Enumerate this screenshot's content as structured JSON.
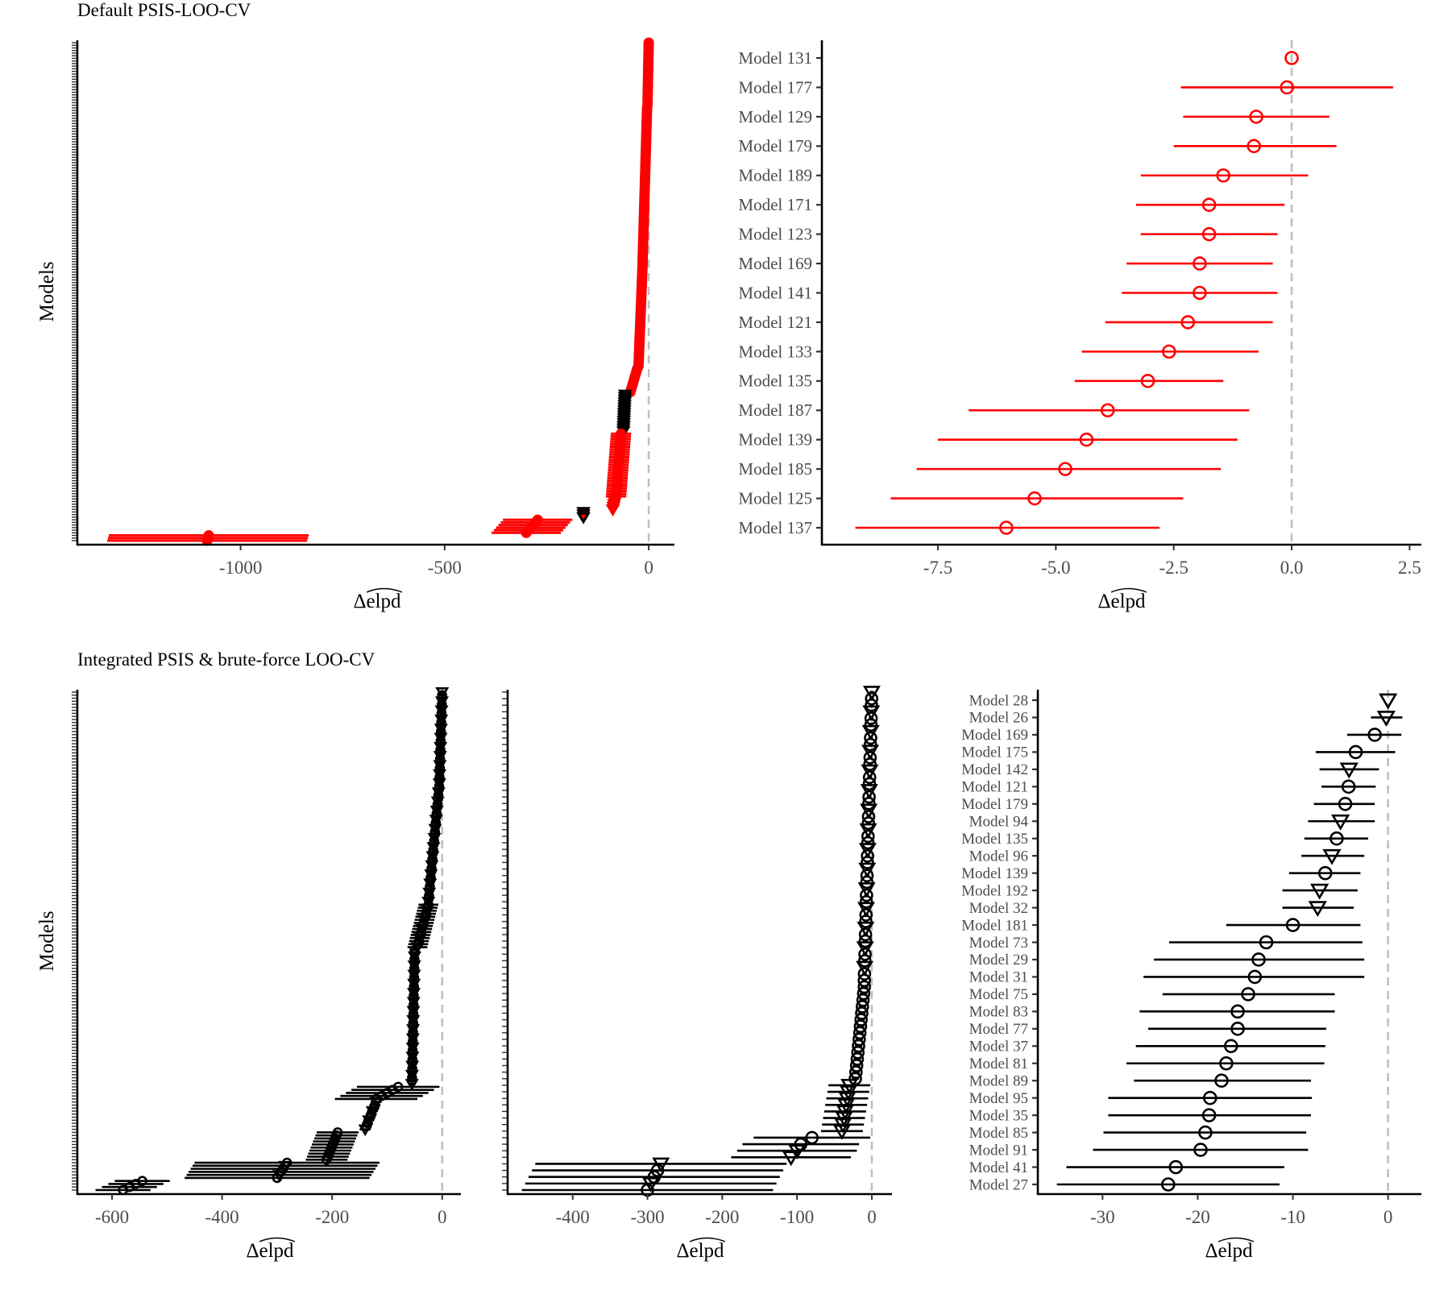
{
  "colors": {
    "psis": "#ff0000",
    "brute": "#000000",
    "zero_line": "#bebebe",
    "axis": "#000000"
  },
  "chart_data": [
    {
      "id": "top-left",
      "type": "scatter",
      "title": "Default PSIS-LOO-CV",
      "xlabel": "Δelpd",
      "ylabel": "Models",
      "xlim": [
        -1400,
        63
      ],
      "xticks": [
        {
          "value": -1000,
          "label": "-1000"
        },
        {
          "value": -500,
          "label": "-500"
        },
        {
          "value": 0,
          "label": "0"
        }
      ],
      "reference_line": 0,
      "segments": [
        {
          "n": 25,
          "est_from": 0,
          "est_to": -3,
          "half_width": 3,
          "shape": "circle",
          "color": "#ff0000",
          "fill": "#ff0000"
        },
        {
          "n": 60,
          "est_from": -4,
          "est_to": -15,
          "half_width": 8,
          "shape": "circle",
          "color": "#ff0000",
          "fill": "#ff0000"
        },
        {
          "n": 40,
          "est_from": -15,
          "est_to": -25,
          "half_width": 10,
          "shape": "circle",
          "color": "#ff0000",
          "fill": "#ff0000"
        },
        {
          "n": 10,
          "est_from": -28,
          "est_to": -45,
          "half_width": 10,
          "shape": "circle",
          "color": "#ff0000",
          "fill": "#ff0000"
        },
        {
          "n": 15,
          "est_from": -58,
          "est_to": -62,
          "half_width": 8,
          "shape": "triangle",
          "color": "#000000",
          "fill": "#000000"
        },
        {
          "n": 25,
          "est_from": -68,
          "est_to": -80,
          "half_width": 25,
          "shape": "circle",
          "color": "#ff0000",
          "fill": "#ff0000"
        },
        {
          "n": 5,
          "est_from": -82,
          "est_to": -88,
          "half_width": 8,
          "shape": "triangle",
          "color": "#ff0000",
          "fill": "#ff0000"
        },
        {
          "n": 3,
          "est_from": -160,
          "est_to": -160,
          "half_width": 6,
          "shape": "triangle",
          "color": "#000000",
          "fill": "#ff0000"
        },
        {
          "n": 6,
          "est_from": -272,
          "est_to": -300,
          "half_width": 85,
          "shape": "circle",
          "color": "#ff0000",
          "fill": "#ff0000"
        },
        {
          "n": 3,
          "est_from": -1078,
          "est_to": -1082,
          "half_width": 245,
          "shape": "circle",
          "color": "#ff0000",
          "fill": "#ff0000"
        }
      ]
    },
    {
      "id": "top-right",
      "type": "scatter",
      "xlabel": "Δelpd",
      "xlim": [
        -9.96,
        2.75
      ],
      "xticks": [
        {
          "value": -7.5,
          "label": "-7.5"
        },
        {
          "value": -5,
          "label": "-5.0"
        },
        {
          "value": -2.5,
          "label": "-2.5"
        },
        {
          "value": 0,
          "label": "0.0"
        },
        {
          "value": 2.5,
          "label": "2.5"
        }
      ],
      "reference_line": 0,
      "color": "#ff0000",
      "rows": [
        {
          "model": "Model 131",
          "est": 0.0,
          "lo": 0.0,
          "hi": 0.0,
          "shape": "circle"
        },
        {
          "model": "Model 177",
          "est": -0.1,
          "lo": -2.35,
          "hi": 2.15,
          "shape": "circle"
        },
        {
          "model": "Model 129",
          "est": -0.75,
          "lo": -2.3,
          "hi": 0.8,
          "shape": "circle"
        },
        {
          "model": "Model 179",
          "est": -0.8,
          "lo": -2.5,
          "hi": 0.95,
          "shape": "circle"
        },
        {
          "model": "Model 189",
          "est": -1.45,
          "lo": -3.2,
          "hi": 0.35,
          "shape": "circle"
        },
        {
          "model": "Model 171",
          "est": -1.75,
          "lo": -3.3,
          "hi": -0.15,
          "shape": "circle"
        },
        {
          "model": "Model 123",
          "est": -1.75,
          "lo": -3.2,
          "hi": -0.3,
          "shape": "circle"
        },
        {
          "model": "Model 169",
          "est": -1.95,
          "lo": -3.5,
          "hi": -0.4,
          "shape": "circle"
        },
        {
          "model": "Model 141",
          "est": -1.95,
          "lo": -3.6,
          "hi": -0.3,
          "shape": "circle"
        },
        {
          "model": "Model 121",
          "est": -2.2,
          "lo": -3.95,
          "hi": -0.4,
          "shape": "circle"
        },
        {
          "model": "Model 133",
          "est": -2.6,
          "lo": -4.45,
          "hi": -0.7,
          "shape": "circle"
        },
        {
          "model": "Model 135",
          "est": -3.05,
          "lo": -4.6,
          "hi": -1.45,
          "shape": "circle"
        },
        {
          "model": "Model 187",
          "est": -3.9,
          "lo": -6.85,
          "hi": -0.9,
          "shape": "circle"
        },
        {
          "model": "Model 139",
          "est": -4.35,
          "lo": -7.5,
          "hi": -1.15,
          "shape": "circle"
        },
        {
          "model": "Model 185",
          "est": -4.8,
          "lo": -7.95,
          "hi": -1.5,
          "shape": "circle"
        },
        {
          "model": "Model 125",
          "est": -5.45,
          "lo": -8.5,
          "hi": -2.3,
          "shape": "circle"
        },
        {
          "model": "Model 137",
          "est": -6.05,
          "lo": -9.25,
          "hi": -2.8,
          "shape": "circle"
        }
      ]
    },
    {
      "id": "bottom-left",
      "type": "scatter",
      "title": "Integrated PSIS & brute-force LOO-CV",
      "xlabel": "Δelpd",
      "ylabel": "Models",
      "xlim": [
        -663,
        34
      ],
      "xticks": [
        {
          "value": -600,
          "label": "-600"
        },
        {
          "value": -400,
          "label": "-400"
        },
        {
          "value": -200,
          "label": "-200"
        },
        {
          "value": 0,
          "label": "0"
        }
      ],
      "reference_line": 0,
      "segments": [
        {
          "n": 30,
          "est_from": 0,
          "est_to": -5,
          "half_width": 5,
          "shape": "mixed",
          "color": "#000000",
          "fill": "none"
        },
        {
          "n": 40,
          "est_from": -5,
          "est_to": -25,
          "half_width": 5,
          "shape": "mixed",
          "color": "#000000",
          "fill": "none"
        },
        {
          "n": 15,
          "est_from": -25,
          "est_to": -45,
          "half_width": 18,
          "shape": "mixed",
          "color": "#000000",
          "fill": "none"
        },
        {
          "n": 45,
          "est_from": -50,
          "est_to": -55,
          "half_width": 5,
          "shape": "mixed",
          "color": "#000000",
          "fill": "none"
        },
        {
          "n": 5,
          "est_from": -80,
          "est_to": -120,
          "half_width": 75,
          "shape": "circle",
          "color": "#000000",
          "fill": "none"
        },
        {
          "n": 10,
          "est_from": -120,
          "est_to": -140,
          "half_width": 10,
          "shape": "mixed",
          "color": "#000000",
          "fill": "none"
        },
        {
          "n": 10,
          "est_from": -190,
          "est_to": -210,
          "half_width": 38,
          "shape": "circle",
          "color": "#000000",
          "fill": "none"
        },
        {
          "n": 6,
          "est_from": -282,
          "est_to": -300,
          "half_width": 168,
          "shape": "mixed",
          "color": "#000000",
          "fill": "none"
        },
        {
          "n": 4,
          "est_from": -545,
          "est_to": -580,
          "half_width": 50,
          "shape": "circle",
          "color": "#000000",
          "fill": "none"
        }
      ]
    },
    {
      "id": "bottom-middle",
      "type": "scatter",
      "xlabel": "Δelpd",
      "xlim": [
        -487,
        27
      ],
      "xticks": [
        {
          "value": -400,
          "label": "-400"
        },
        {
          "value": -300,
          "label": "-300"
        },
        {
          "value": -200,
          "label": "-200"
        },
        {
          "value": -100,
          "label": "-100"
        },
        {
          "value": 0,
          "label": "0"
        }
      ],
      "reference_line": 0,
      "segments": [
        {
          "n": 45,
          "est_from": 0,
          "est_to": -10,
          "half_width": 3,
          "shape": "mixed",
          "color": "#000000",
          "fill": "none"
        },
        {
          "n": 15,
          "est_from": -10,
          "est_to": -22,
          "half_width": 5,
          "shape": "circle",
          "color": "#000000",
          "fill": "none"
        },
        {
          "n": 8,
          "est_from": -30,
          "est_to": -40,
          "half_width": 28,
          "shape": "triangle",
          "color": "#000000",
          "fill": "none"
        },
        {
          "n": 2,
          "est_from": -80,
          "est_to": -95,
          "half_width": 78,
          "shape": "circle",
          "color": "#000000",
          "fill": "none"
        },
        {
          "n": 2,
          "est_from": -100,
          "est_to": -108,
          "half_width": 80,
          "shape": "triangle",
          "color": "#000000",
          "fill": "none"
        },
        {
          "n": 5,
          "est_from": -282,
          "est_to": -300,
          "half_width": 168,
          "shape": "mixed",
          "color": "#000000",
          "fill": "none"
        }
      ]
    },
    {
      "id": "bottom-right",
      "type": "scatter",
      "xlabel": "Δelpd",
      "xlim": [
        -36.8,
        3.5
      ],
      "xticks": [
        {
          "value": -30,
          "label": "-30"
        },
        {
          "value": -20,
          "label": "-20"
        },
        {
          "value": -10,
          "label": "-10"
        },
        {
          "value": 0,
          "label": "0"
        }
      ],
      "reference_line": 0,
      "color": "#000000",
      "rows": [
        {
          "model": "Model 28",
          "est": 0.0,
          "lo": 0.0,
          "hi": 0.0,
          "shape": "triangle"
        },
        {
          "model": "Model 26",
          "est": -0.2,
          "lo": -1.8,
          "hi": 1.5,
          "shape": "triangle"
        },
        {
          "model": "Model 169",
          "est": -1.4,
          "lo": -4.3,
          "hi": 1.4,
          "shape": "circle"
        },
        {
          "model": "Model 175",
          "est": -3.4,
          "lo": -7.6,
          "hi": 0.75,
          "shape": "circle"
        },
        {
          "model": "Model 142",
          "est": -4.1,
          "lo": -7.2,
          "hi": -0.95,
          "shape": "triangle"
        },
        {
          "model": "Model 121",
          "est": -4.15,
          "lo": -7.0,
          "hi": -1.3,
          "shape": "circle"
        },
        {
          "model": "Model 179",
          "est": -4.5,
          "lo": -7.8,
          "hi": -1.4,
          "shape": "circle"
        },
        {
          "model": "Model 94",
          "est": -5.0,
          "lo": -8.4,
          "hi": -1.4,
          "shape": "triangle"
        },
        {
          "model": "Model 135",
          "est": -5.4,
          "lo": -8.8,
          "hi": -2.1,
          "shape": "circle"
        },
        {
          "model": "Model 96",
          "est": -5.9,
          "lo": -9.1,
          "hi": -2.5,
          "shape": "triangle"
        },
        {
          "model": "Model 139",
          "est": -6.6,
          "lo": -10.4,
          "hi": -2.9,
          "shape": "circle"
        },
        {
          "model": "Model 192",
          "est": -7.2,
          "lo": -11.1,
          "hi": -3.2,
          "shape": "triangle"
        },
        {
          "model": "Model 32",
          "est": -7.4,
          "lo": -11.1,
          "hi": -3.6,
          "shape": "triangle"
        },
        {
          "model": "Model 181",
          "est": -10.0,
          "lo": -17.0,
          "hi": -2.9,
          "shape": "circle"
        },
        {
          "model": "Model 73",
          "est": -12.8,
          "lo": -23.0,
          "hi": -2.7,
          "shape": "circle"
        },
        {
          "model": "Model 29",
          "est": -13.6,
          "lo": -24.6,
          "hi": -2.5,
          "shape": "circle"
        },
        {
          "model": "Model 31",
          "est": -14.0,
          "lo": -25.7,
          "hi": -2.5,
          "shape": "circle"
        },
        {
          "model": "Model 75",
          "est": -14.7,
          "lo": -23.7,
          "hi": -5.6,
          "shape": "circle"
        },
        {
          "model": "Model 83",
          "est": -15.8,
          "lo": -26.1,
          "hi": -5.6,
          "shape": "circle"
        },
        {
          "model": "Model 77",
          "est": -15.8,
          "lo": -25.2,
          "hi": -6.5,
          "shape": "circle"
        },
        {
          "model": "Model 37",
          "est": -16.5,
          "lo": -26.5,
          "hi": -6.6,
          "shape": "circle"
        },
        {
          "model": "Model 81",
          "est": -17.0,
          "lo": -27.5,
          "hi": -6.7,
          "shape": "circle"
        },
        {
          "model": "Model 89",
          "est": -17.5,
          "lo": -26.7,
          "hi": -8.1,
          "shape": "circle"
        },
        {
          "model": "Model 95",
          "est": -18.7,
          "lo": -29.4,
          "hi": -8.0,
          "shape": "circle"
        },
        {
          "model": "Model 35",
          "est": -18.8,
          "lo": -29.4,
          "hi": -8.1,
          "shape": "circle"
        },
        {
          "model": "Model 85",
          "est": -19.2,
          "lo": -29.9,
          "hi": -8.6,
          "shape": "circle"
        },
        {
          "model": "Model 91",
          "est": -19.7,
          "lo": -31.0,
          "hi": -8.4,
          "shape": "circle"
        },
        {
          "model": "Model 41",
          "est": -22.3,
          "lo": -33.8,
          "hi": -10.9,
          "shape": "circle"
        },
        {
          "model": "Model 27",
          "est": -23.1,
          "lo": -34.8,
          "hi": -11.4,
          "shape": "circle"
        }
      ]
    }
  ]
}
